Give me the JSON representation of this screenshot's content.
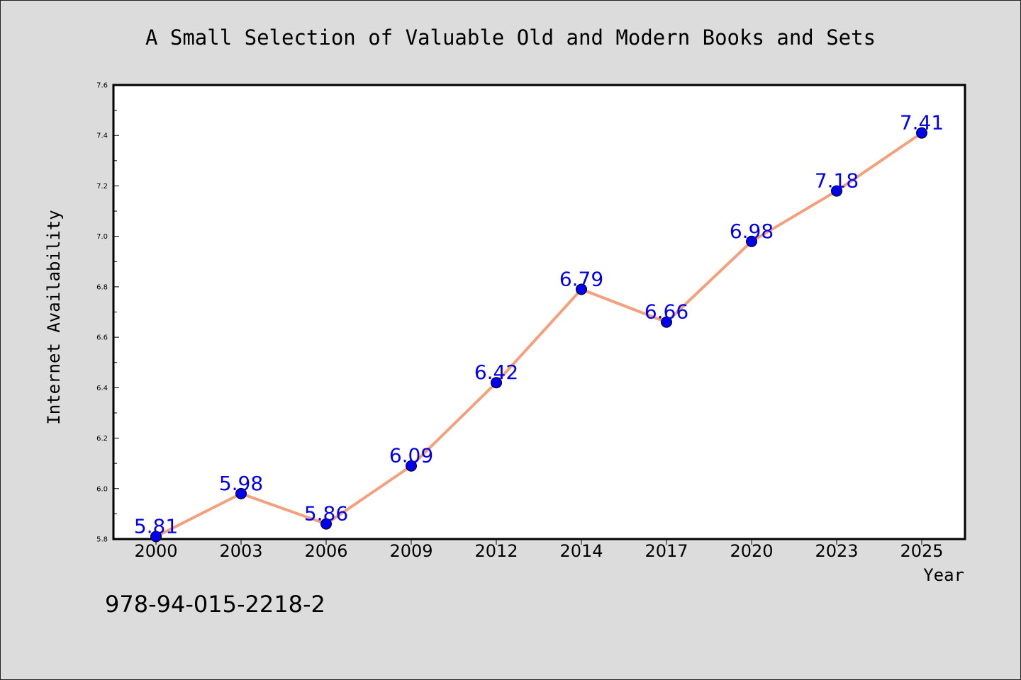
{
  "chart_data": {
    "type": "line",
    "title": "A Small Selection of Valuable Old and Modern Books and Sets",
    "xlabel": "Year",
    "ylabel": "Internet Availability",
    "x": [
      "2000",
      "2003",
      "2006",
      "2009",
      "2012",
      "2014",
      "2017",
      "2020",
      "2023",
      "2025"
    ],
    "series": [
      {
        "values": [
          5.81,
          5.98,
          5.86,
          6.09,
          6.42,
          6.79,
          6.66,
          6.98,
          7.18,
          7.41
        ],
        "labels": [
          "5.81",
          "5.98",
          "5.86",
          "6.09",
          "6.42",
          "6.79",
          "6.66",
          "6.98",
          "7.18",
          "7.41"
        ]
      }
    ],
    "ylim": [
      5.8,
      7.6
    ],
    "yticks": [
      "5.8",
      "6.0",
      "6.2",
      "6.4",
      "6.6",
      "6.8",
      "7.0",
      "7.2",
      "7.4",
      "7.6"
    ],
    "grid": false,
    "colors": {
      "line": "#f4a07c",
      "marker": "#0000ee",
      "data_label": "#0000ee",
      "plot_background": "#ffffff",
      "figure_background": "#dcdcdc"
    }
  },
  "footnote": "978-94-015-2218-2"
}
